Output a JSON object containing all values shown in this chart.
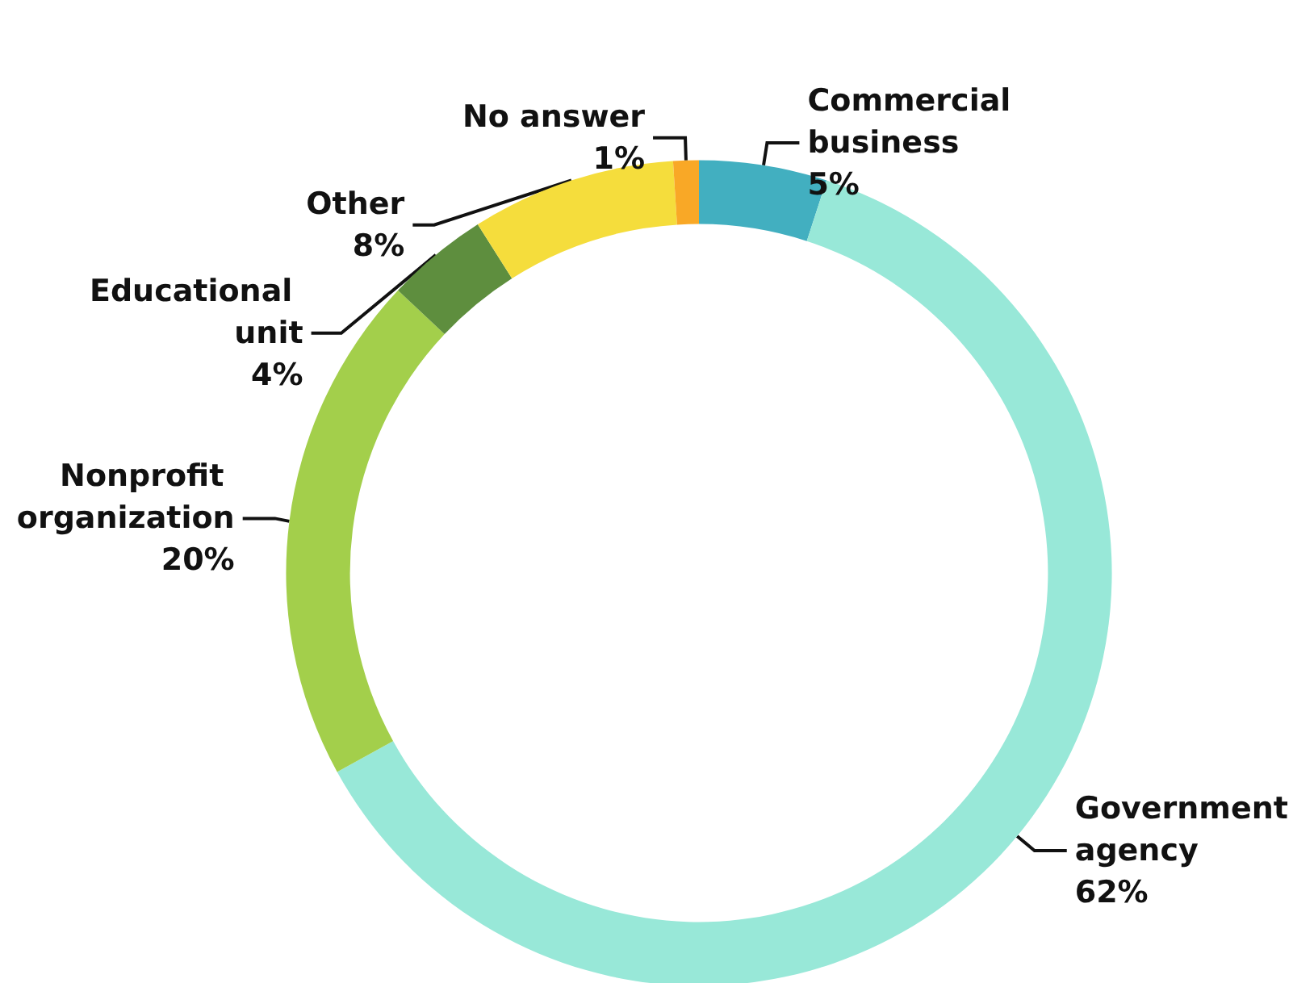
{
  "chart_data": {
    "type": "donut",
    "categories": [
      "Commercial business",
      "Government agency",
      "Nonprofit organization",
      "Educational unit",
      "Other",
      "No answer"
    ],
    "values": [
      5,
      62,
      20,
      4,
      8,
      1
    ],
    "colors": [
      "#42afc0",
      "#98e8d8",
      "#a3cf4b",
      "#5e8e3e",
      "#f5dd3c",
      "#f9a826"
    ],
    "value_labels": [
      "5%",
      "62%",
      "20%",
      "4%",
      "8%",
      "1%"
    ],
    "legend": false
  }
}
